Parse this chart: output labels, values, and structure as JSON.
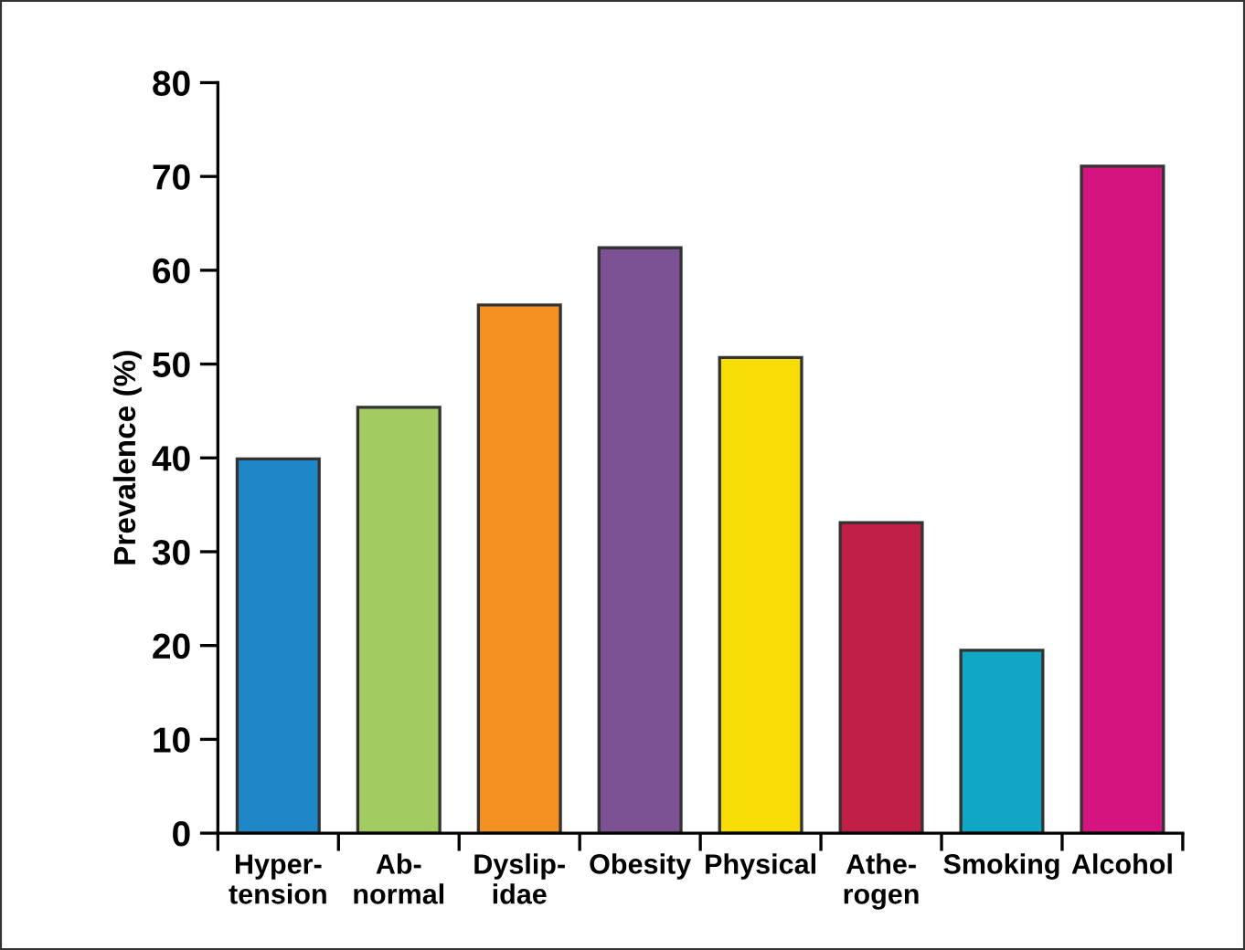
{
  "chart_data": {
    "type": "bar",
    "ylabel": "Prevalence (%)",
    "categories": [
      "Hyper-\ntension",
      "Ab-\nnormal",
      "Dyslip-\nidae",
      "Obesity",
      "Physical",
      "Athe-\nrogen",
      "Smoking",
      "Alcohol"
    ],
    "values": [
      39.9,
      45.4,
      56.3,
      62.4,
      50.7,
      33.1,
      19.5,
      71.1
    ],
    "colors": [
      "#1f87c8",
      "#a2cc62",
      "#f39222",
      "#7d5295",
      "#f8dc06",
      "#c21f47",
      "#0fa7c4",
      "#d5147f"
    ],
    "ylim": [
      0,
      80
    ],
    "yticks": [
      0,
      10,
      20,
      30,
      40,
      50,
      60,
      70,
      80
    ],
    "grid": false
  }
}
